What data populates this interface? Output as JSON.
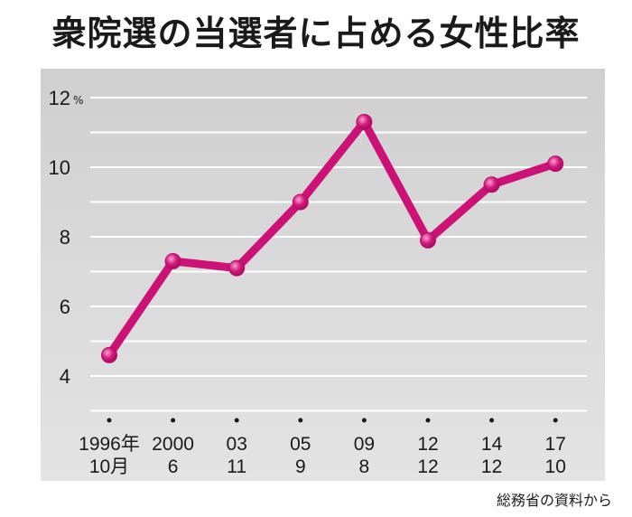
{
  "title": "衆院選の当選者に占める女性比率",
  "source": "総務省の資料から",
  "colors": {
    "line": "#cc1277",
    "marker": "#d4197f",
    "grid": "#ffffff",
    "background": "#d6d6d6"
  },
  "chart_data": {
    "type": "line",
    "title": "衆院選の当選者に占める女性比率",
    "ylabel": "",
    "xlabel": "",
    "y_unit": "%",
    "ylim": [
      3,
      13
    ],
    "yticks": [
      4,
      6,
      8,
      10,
      12
    ],
    "grid": true,
    "categories": [
      {
        "top": "1996年",
        "bottom": "10月"
      },
      {
        "top": "2000",
        "bottom": "6"
      },
      {
        "top": "03",
        "bottom": "11"
      },
      {
        "top": "05",
        "bottom": "9"
      },
      {
        "top": "09",
        "bottom": "8"
      },
      {
        "top": "12",
        "bottom": "12"
      },
      {
        "top": "14",
        "bottom": "12"
      },
      {
        "top": "17",
        "bottom": "10"
      }
    ],
    "series": [
      {
        "values": [
          4.6,
          7.3,
          7.1,
          9.0,
          11.3,
          7.9,
          9.5,
          10.1
        ]
      }
    ]
  }
}
